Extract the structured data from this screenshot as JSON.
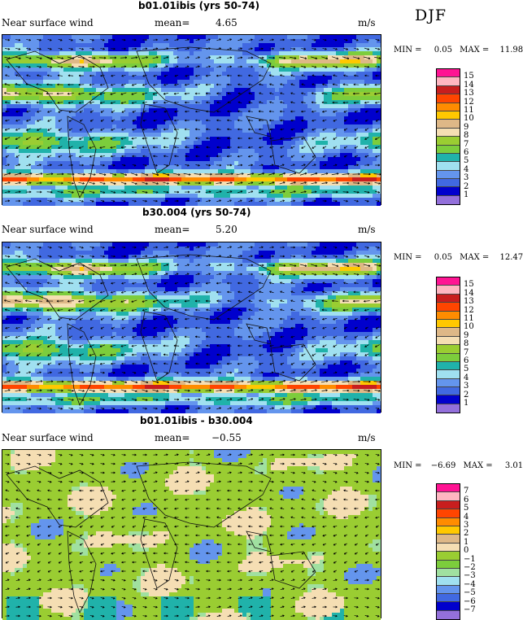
{
  "season": "DJF",
  "panels": [
    {
      "title": "b01.01ibis (yrs 50-74)",
      "variable": "Near surface wind",
      "mean_label": "mean=",
      "mean_value": "4.65",
      "units": "m/s",
      "min_label": "MIN =",
      "min_value": "0.05",
      "max_label": "MAX =",
      "max_value": "11.98",
      "colorbar": [
        "15",
        "14",
        "13",
        "12",
        "11",
        "10",
        "9",
        "8",
        "7",
        "6",
        "5",
        "4",
        "3",
        "2",
        "1"
      ]
    },
    {
      "title": "b30.004 (yrs 50-74)",
      "variable": "Near surface wind",
      "mean_label": "mean=",
      "mean_value": "5.20",
      "units": "m/s",
      "min_label": "MIN =",
      "min_value": "0.05",
      "max_label": "MAX =",
      "max_value": "12.47",
      "colorbar": [
        "15",
        "14",
        "13",
        "12",
        "11",
        "10",
        "9",
        "8",
        "7",
        "6",
        "5",
        "4",
        "3",
        "2",
        "1"
      ]
    },
    {
      "title": "b01.01ibis - b30.004",
      "variable": "Near surface wind",
      "mean_label": "mean=",
      "mean_value": "−0.55",
      "units": "m/s",
      "min_label": "MIN =",
      "min_value": "−6.69",
      "max_label": "MAX =",
      "max_value": "3.01",
      "colorbar": [
        "7",
        "6",
        "5",
        "4",
        "3",
        "2",
        "1",
        "0",
        "−1",
        "−2",
        "−3",
        "−4",
        "−5",
        "−6",
        "−7"
      ]
    }
  ],
  "colors": {
    "abs_scale": [
      "#ff1493",
      "#ffb6c1",
      "#c81e1e",
      "#ff4500",
      "#ff8c00",
      "#ffc800",
      "#deb887",
      "#f5deb3",
      "#9acd32",
      "#7ccd3c",
      "#20b2aa",
      "#a0e0f0",
      "#6495ed",
      "#4169e1",
      "#0000cd",
      "#9370db"
    ],
    "diff_scale": [
      "#ff1493",
      "#ffb6c1",
      "#c81e1e",
      "#ff4500",
      "#ff8c00",
      "#ffc800",
      "#deb887",
      "#f5deb3",
      "#9acd32",
      "#7ccd3c",
      "#a0e0a0",
      "#a0e0f0",
      "#6495ed",
      "#4169e1",
      "#0000cd",
      "#9370db"
    ]
  }
}
